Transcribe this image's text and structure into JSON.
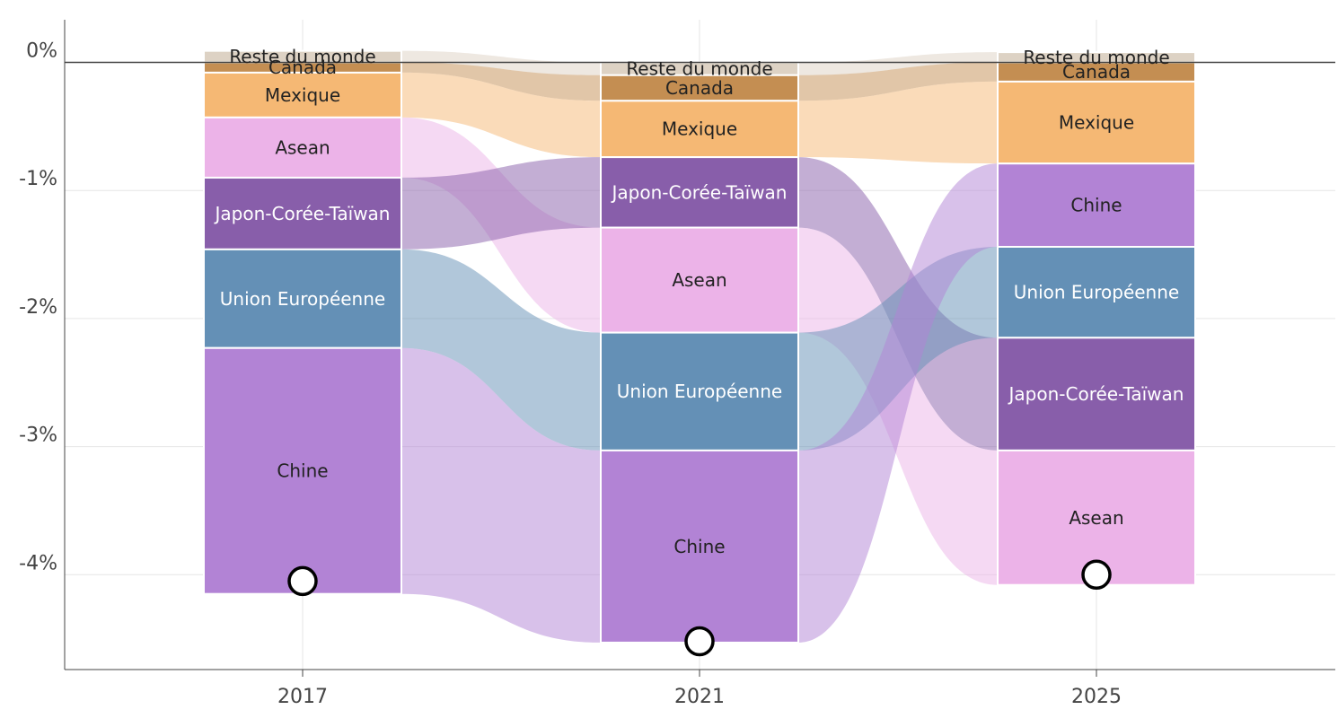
{
  "chart_data": {
    "type": "alluvial-stacked-bar",
    "title": "",
    "xlabel": "",
    "ylabel": "",
    "ylim": [
      -4.75,
      0.35
    ],
    "yticks": [
      0,
      -1,
      -2,
      -3,
      -4
    ],
    "ytick_labels": [
      "0%",
      "-1%",
      "-2%",
      "-3%",
      "-4%"
    ],
    "grid": true,
    "categories": [
      "2017",
      "2021",
      "2025"
    ],
    "series_colors": {
      "Reste du monde": "#ddd2c4",
      "Canada": "#c48e52",
      "Mexique": "#f5b874",
      "Asean": "#ecb3e8",
      "Japon-Corée-Taïwan": "#885eaa",
      "Union Européenne": "#6490b6",
      "Chine": "#b283d5"
    },
    "label_colors": {
      "Reste du monde": "#222222",
      "Canada": "#222222",
      "Mexique": "#222222",
      "Asean": "#222222",
      "Japon-Corée-Taïwan": "#ffffff",
      "Union Européenne": "#ffffff",
      "Chine": "#222222"
    },
    "columns": [
      {
        "year": "2017",
        "total": -4.05,
        "segments": [
          {
            "name": "Reste du monde",
            "value": 0.09
          },
          {
            "name": "Canada",
            "value": -0.08
          },
          {
            "name": "Mexique",
            "value": -0.35
          },
          {
            "name": "Asean",
            "value": -0.47
          },
          {
            "name": "Japon-Corée-Taïwan",
            "value": -0.56
          },
          {
            "name": "Union Européenne",
            "value": -0.77
          },
          {
            "name": "Chine",
            "value": -1.92
          }
        ]
      },
      {
        "year": "2021",
        "total": -4.52,
        "segments": [
          {
            "name": "Reste du monde",
            "value": -0.1
          },
          {
            "name": "Canada",
            "value": -0.2
          },
          {
            "name": "Mexique",
            "value": -0.44
          },
          {
            "name": "Japon-Corée-Taïwan",
            "value": -0.55
          },
          {
            "name": "Asean",
            "value": -0.82
          },
          {
            "name": "Union Européenne",
            "value": -0.92
          },
          {
            "name": "Chine",
            "value": -1.5
          }
        ]
      },
      {
        "year": "2025",
        "total": -4.0,
        "segments": [
          {
            "name": "Reste du monde",
            "value": 0.08
          },
          {
            "name": "Canada",
            "value": -0.15
          },
          {
            "name": "Mexique",
            "value": -0.64
          },
          {
            "name": "Chine",
            "value": -0.65
          },
          {
            "name": "Union Européenne",
            "value": -0.71
          },
          {
            "name": "Japon-Corée-Taïwan",
            "value": -0.88
          },
          {
            "name": "Asean",
            "value": -1.05
          }
        ]
      }
    ]
  }
}
